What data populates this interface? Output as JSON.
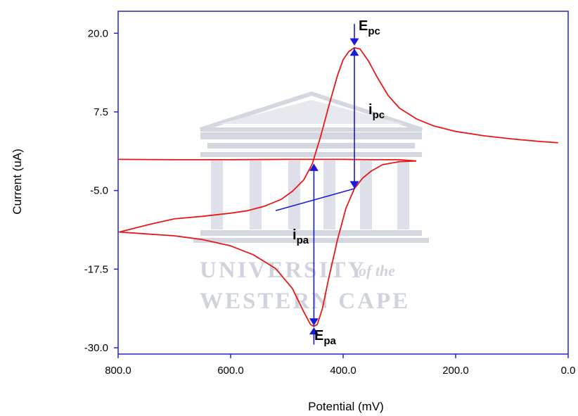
{
  "colors": {
    "frame": "#2020e0",
    "curve": "#e81818",
    "annotation": "#1a1ad8",
    "watermark": "#cfd3dd"
  },
  "watermark": {
    "line1": "UNIVERSITY",
    "line1_tail": "of the",
    "line2": "WESTERN CAPE"
  },
  "chart_data": {
    "type": "line",
    "xlabel": "Potential (mV)",
    "ylabel": "Current (uA)",
    "xlim": [
      800,
      0
    ],
    "ylim": [
      -31,
      23.5
    ],
    "x_ticks": [
      {
        "value": 800,
        "label": "800.0"
      },
      {
        "value": 600,
        "label": "600.0"
      },
      {
        "value": 400,
        "label": "400.0"
      },
      {
        "value": 200,
        "label": "200.0"
      },
      {
        "value": 0,
        "label": "0.0"
      }
    ],
    "y_ticks": [
      {
        "value": 20,
        "label": "20.0"
      },
      {
        "value": 7.5,
        "label": "7.5"
      },
      {
        "value": -5,
        "label": "-5.0"
      },
      {
        "value": -17.5,
        "label": "-17.5"
      },
      {
        "value": -30,
        "label": "-30.0"
      }
    ],
    "grid": false,
    "series": [
      {
        "points": [
          [
            270,
            -0.3
          ],
          [
            300,
            -0.4
          ],
          [
            330,
            -0.9
          ],
          [
            350,
            -1.9
          ],
          [
            365,
            -3.0
          ],
          [
            380,
            -4.7
          ],
          [
            395,
            -7.8
          ],
          [
            410,
            -12.8
          ],
          [
            425,
            -18.7
          ],
          [
            437,
            -23.8
          ],
          [
            446,
            -26.3
          ],
          [
            452,
            -26.6
          ],
          [
            458,
            -26.3
          ],
          [
            470,
            -24.3
          ],
          [
            490,
            -20.6
          ],
          [
            520,
            -17.4
          ],
          [
            560,
            -15.2
          ],
          [
            600,
            -13.8
          ],
          [
            650,
            -12.8
          ],
          [
            700,
            -12.2
          ],
          [
            750,
            -11.9
          ],
          [
            798,
            -11.6
          ],
          [
            740,
            -10.3
          ],
          [
            700,
            -9.5
          ],
          [
            650,
            -9.1
          ],
          [
            600,
            -8.6
          ],
          [
            570,
            -8.2
          ],
          [
            540,
            -7.5
          ],
          [
            510,
            -6.4
          ],
          [
            490,
            -5.1
          ],
          [
            470,
            -3.3
          ],
          [
            455,
            -0.8
          ],
          [
            440,
            3.6
          ],
          [
            425,
            8.6
          ],
          [
            410,
            13.3
          ],
          [
            400,
            15.8
          ],
          [
            390,
            17.1
          ],
          [
            380,
            17.7
          ],
          [
            370,
            17.5
          ],
          [
            355,
            15.6
          ],
          [
            340,
            13.1
          ],
          [
            320,
            10.1
          ],
          [
            300,
            8.1
          ],
          [
            270,
            6.4
          ],
          [
            240,
            5.3
          ],
          [
            200,
            4.4
          ],
          [
            150,
            3.7
          ],
          [
            100,
            3.2
          ],
          [
            50,
            2.8
          ],
          [
            18,
            2.6
          ]
        ]
      },
      {
        "points": [
          [
            270,
            -0.3
          ],
          [
            300,
            -0.1
          ],
          [
            350,
            -0.1
          ],
          [
            400,
            -0.05
          ],
          [
            500,
            -0.05
          ],
          [
            600,
            -0.1
          ],
          [
            700,
            -0.1
          ],
          [
            800,
            -0.05
          ]
        ]
      }
    ],
    "annotations": [
      {
        "main": "E",
        "sub": "pc"
      },
      {
        "main": "i",
        "sub": "pc"
      },
      {
        "main": "i",
        "sub": "pa"
      },
      {
        "main": "E",
        "sub": "pa"
      }
    ]
  }
}
